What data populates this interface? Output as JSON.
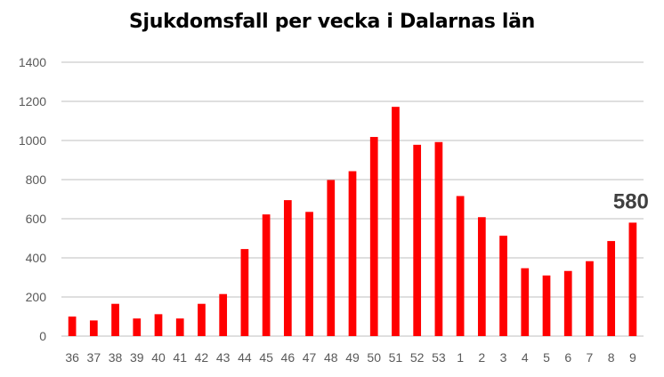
{
  "chart_data": {
    "type": "bar",
    "title": "Sjukdomsfall per vecka i Dalarnas län",
    "xlabel": "",
    "ylabel": "",
    "categories": [
      "36",
      "37",
      "38",
      "39",
      "40",
      "41",
      "42",
      "43",
      "44",
      "45",
      "46",
      "47",
      "48",
      "49",
      "50",
      "51",
      "52",
      "53",
      "1",
      "2",
      "3",
      "4",
      "5",
      "6",
      "7",
      "8",
      "9"
    ],
    "values": [
      100,
      80,
      165,
      90,
      112,
      90,
      165,
      215,
      445,
      622,
      695,
      635,
      798,
      843,
      1018,
      1172,
      978,
      992,
      716,
      608,
      513,
      347,
      310,
      333,
      383,
      486,
      580
    ],
    "ylim": [
      0,
      1400
    ],
    "yticks": [
      0,
      200,
      400,
      600,
      800,
      1000,
      1200,
      1400
    ],
    "ytick_labels": [
      "0",
      "200",
      "400",
      "600",
      "800",
      "1000",
      "1200",
      "1400"
    ],
    "grid": true,
    "legend": "none",
    "bar_color": "#ff0000",
    "grid_color": "#bfbfbf",
    "annotation": {
      "text": "580",
      "category": "9",
      "value": 580
    }
  }
}
